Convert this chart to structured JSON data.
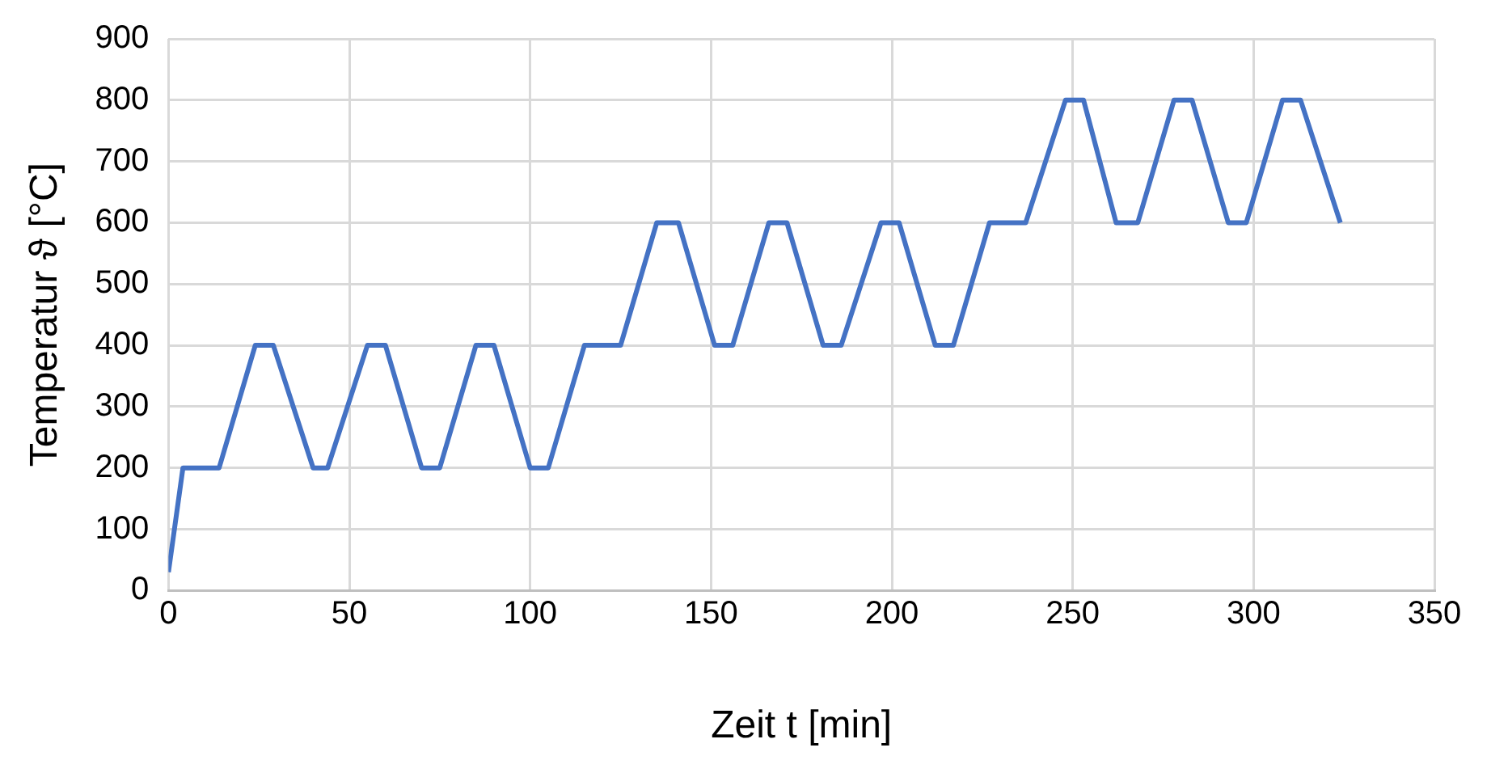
{
  "chart_data": {
    "type": "line",
    "xlabel": "Zeit t [min]",
    "ylabel": "Temperatur ϑ [°C]",
    "x": [
      0,
      4,
      14,
      24,
      29,
      40,
      44,
      55,
      60,
      70,
      75,
      85,
      90,
      100,
      105,
      115,
      125,
      135,
      141,
      151,
      156,
      166,
      171,
      181,
      186,
      197,
      202,
      212,
      217,
      227,
      237,
      248,
      253,
      262,
      268,
      278,
      283,
      293,
      298,
      308,
      313,
      324
    ],
    "series": [
      {
        "color": "#4472c4",
        "values": [
          30,
          200,
          200,
          400,
          400,
          200,
          200,
          400,
          400,
          200,
          200,
          400,
          400,
          200,
          200,
          400,
          400,
          600,
          600,
          400,
          400,
          600,
          600,
          400,
          400,
          600,
          600,
          400,
          400,
          600,
          600,
          800,
          800,
          600,
          600,
          800,
          800,
          600,
          600,
          800,
          800,
          600
        ]
      }
    ],
    "xlim": [
      0,
      350
    ],
    "xticks": [
      0,
      50,
      100,
      150,
      200,
      250,
      300,
      350
    ],
    "ylim": [
      0,
      900
    ],
    "yticks": [
      0,
      100,
      200,
      300,
      400,
      500,
      600,
      700,
      800,
      900
    ],
    "grid": true,
    "legend": false,
    "marker": "none",
    "line_style": "solid"
  }
}
